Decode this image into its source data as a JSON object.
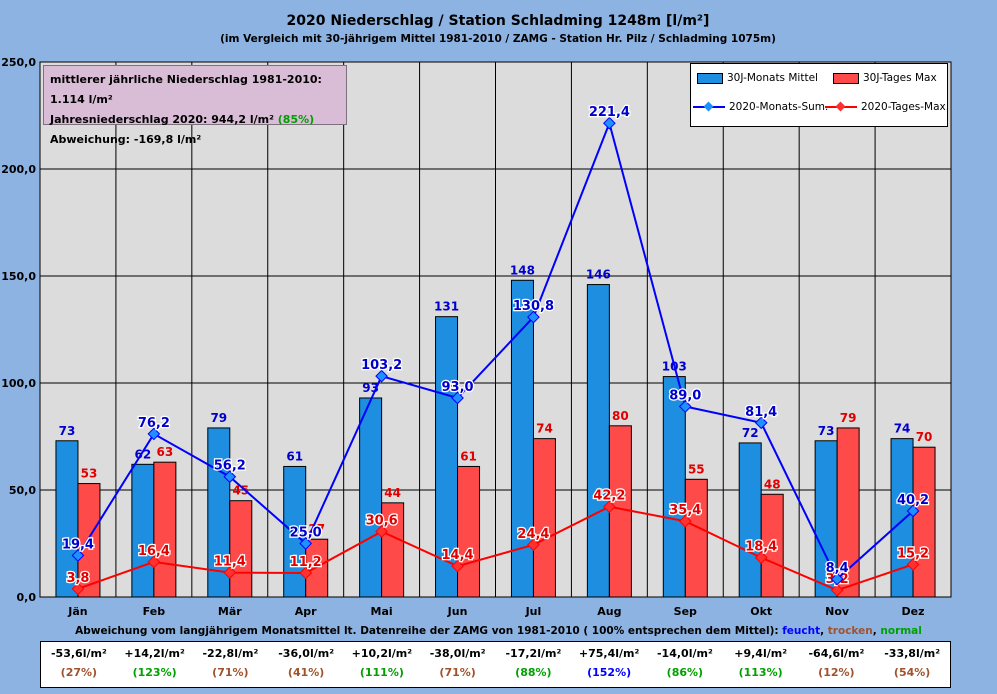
{
  "title": "2020 Niederschlag / Station Schladming 1248m [l/m²]",
  "subtitle": "(im Vergleich mit 30-jährigem Mittel 1981-2010 / ZAMG - Station Hr. Pilz / Schladming 1075m)",
  "info": {
    "line1": "mittlerer jährliche Niederschlag 1981-2010: 1.114 l/m²",
    "line2_prefix": "Jahresniederschlag 2020: 944,2 l/m²",
    "line2_pct": "(85%)",
    "line3": "Abweichung: -169,8 l/m²"
  },
  "note": {
    "prefix": "Abweichung vom langjährigem Monatsmittel lt. Datenreihe der ZAMG von 1981-2010 ( 100% entsprechen dem Mittel):",
    "feucht": "feucht",
    "trocken": "trocken",
    "normal": "normal"
  },
  "colors": {
    "plot_bg": "#dcdcdc",
    "bar_mittel": "#1e8ee0",
    "bar_max": "#ff4a4a",
    "line_sum": "#0000ff",
    "line_max": "#ff0000",
    "feucht": "#0000ff",
    "trocken": "#a0522d",
    "normal": "#00a000"
  },
  "chart_data": {
    "type": "bar",
    "categories": [
      "Jän",
      "Feb",
      "Mär",
      "Apr",
      "Mai",
      "Jun",
      "Jul",
      "Aug",
      "Sep",
      "Okt",
      "Nov",
      "Dez"
    ],
    "ylim": [
      0,
      250
    ],
    "yticks": [
      "0,0",
      "50,0",
      "100,0",
      "150,0",
      "200,0",
      "250,0"
    ],
    "ytick_values": [
      0,
      50,
      100,
      150,
      200,
      250
    ],
    "grid": true,
    "legend_position": "top-right",
    "series": [
      {
        "name": "30J-Monats Mittel",
        "kind": "bar",
        "values": [
          73,
          62,
          79,
          61,
          93,
          131,
          148,
          146,
          103,
          72,
          73,
          74
        ],
        "labels": [
          "73",
          "62",
          "79",
          "61",
          "93",
          "131",
          "148",
          "146",
          "103",
          "72",
          "73",
          "74"
        ]
      },
      {
        "name": "30J-Tages Max",
        "kind": "bar",
        "values": [
          53,
          63,
          45,
          27,
          44,
          61,
          74,
          80,
          55,
          48,
          79,
          70
        ],
        "labels": [
          "53",
          "63",
          "45",
          "27",
          "44",
          "61",
          "74",
          "80",
          "55",
          "48",
          "79",
          "70"
        ]
      },
      {
        "name": "2020-Monats-Sum.",
        "kind": "line",
        "values": [
          19.4,
          76.2,
          56.2,
          25.0,
          103.2,
          93.0,
          130.8,
          221.4,
          89.0,
          81.4,
          8.4,
          40.2
        ],
        "labels": [
          "19,4",
          "76,2",
          "56,2",
          "25,0",
          "103,2",
          "93,0",
          "130,8",
          "221,4",
          "89,0",
          "81,4",
          "8,4",
          "40,2"
        ]
      },
      {
        "name": "2020-Tages-Max.",
        "kind": "line",
        "values": [
          3.8,
          16.4,
          11.4,
          11.2,
          30.6,
          14.4,
          24.4,
          42.2,
          35.4,
          18.4,
          3.2,
          15.2
        ],
        "labels": [
          "3,8",
          "16,4",
          "11,4",
          "11,2",
          "30,6",
          "14,4",
          "24,4",
          "42,2",
          "35,4",
          "18,4",
          "3,2",
          "15,2"
        ]
      }
    ]
  },
  "deviation_table": [
    {
      "dev": "-53,6l/m²",
      "pct": "(27%)",
      "cls": "t"
    },
    {
      "dev": "+14,2l/m²",
      "pct": "(123%)",
      "cls": "n"
    },
    {
      "dev": "-22,8l/m²",
      "pct": "(71%)",
      "cls": "t"
    },
    {
      "dev": "-36,0l/m²",
      "pct": "(41%)",
      "cls": "t"
    },
    {
      "dev": "+10,2l/m²",
      "pct": "(111%)",
      "cls": "n"
    },
    {
      "dev": "-38,0l/m²",
      "pct": "(71%)",
      "cls": "t"
    },
    {
      "dev": "-17,2l/m²",
      "pct": "(88%)",
      "cls": "n"
    },
    {
      "dev": "+75,4l/m²",
      "pct": "(152%)",
      "cls": "f"
    },
    {
      "dev": "-14,0l/m²",
      "pct": "(86%)",
      "cls": "n"
    },
    {
      "dev": "+9,4l/m²",
      "pct": "(113%)",
      "cls": "n"
    },
    {
      "dev": "-64,6l/m²",
      "pct": "(12%)",
      "cls": "t"
    },
    {
      "dev": "-33,8l/m²",
      "pct": "(54%)",
      "cls": "t"
    }
  ]
}
